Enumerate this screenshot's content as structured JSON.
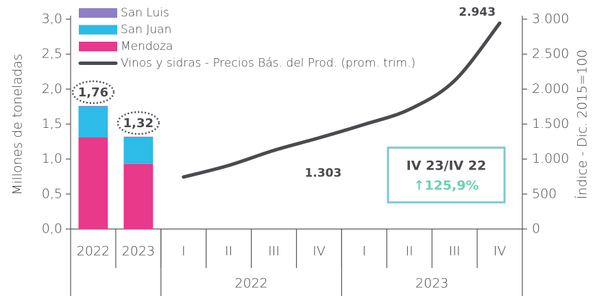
{
  "chart_data": {
    "type": "bar_line",
    "categories": [
      "2022",
      "2023",
      "I",
      "II",
      "III",
      "IV",
      "I",
      "II",
      "III",
      "IV"
    ],
    "groups": [
      "2022",
      "2023"
    ],
    "series": [
      {
        "name": "San Luis",
        "color": "#8f7fc6",
        "kind": "bar",
        "values": [
          0.01,
          0.01,
          null,
          null,
          null,
          null,
          null,
          null,
          null,
          null
        ]
      },
      {
        "name": "San Juan",
        "color": "#2dbbe8",
        "kind": "bar",
        "values": [
          0.44,
          0.38,
          null,
          null,
          null,
          null,
          null,
          null,
          null,
          null
        ]
      },
      {
        "name": "Mendoza",
        "color": "#e8398a",
        "kind": "bar",
        "values": [
          1.31,
          0.93,
          null,
          null,
          null,
          null,
          null,
          null,
          null,
          null
        ]
      },
      {
        "name": "Vinos y sidras - Precios Bás. del Prod. (prom. trim.)",
        "color": "#4a4a4f",
        "kind": "line",
        "axis": "y2",
        "values": [
          null,
          null,
          743,
          909,
          1124,
          1303,
          1495,
          1710,
          2121,
          2943
        ],
        "value_labels": [
          null,
          null,
          null,
          null,
          null,
          "1.303",
          null,
          null,
          null,
          "2.943"
        ]
      }
    ],
    "bar_totals": {
      "values": [
        1.76,
        1.32
      ],
      "value_labels": [
        "1,76",
        "1,32"
      ]
    },
    "ylabel": "Millones de toneladas",
    "y2label": "Índice - Dic. 2015=100",
    "ylim": [
      0,
      3
    ],
    "yticks": [
      {
        "value": 0,
        "label": "0,0"
      },
      {
        "value": 0.5,
        "label": "0,5"
      },
      {
        "value": 1,
        "label": "1,0"
      },
      {
        "value": 1.5,
        "label": "1,5"
      },
      {
        "value": 2,
        "label": "2,0"
      },
      {
        "value": 2.5,
        "label": "2,5"
      },
      {
        "value": 3,
        "label": "3,0"
      }
    ],
    "y2lim": [
      0,
      3000
    ],
    "y2ticks": [
      0,
      500,
      {
        "value": 1000,
        "label": "1.000"
      },
      {
        "value": 1500,
        "label": "1.500"
      },
      {
        "value": 2000,
        "label": "2.000"
      },
      {
        "value": 2500,
        "label": "2.500"
      },
      {
        "value": 3000,
        "label": "3.000"
      }
    ],
    "annotation": {
      "title": "IV 23/IV 22",
      "text": "↑125,9%"
    },
    "legend": "upper left"
  }
}
